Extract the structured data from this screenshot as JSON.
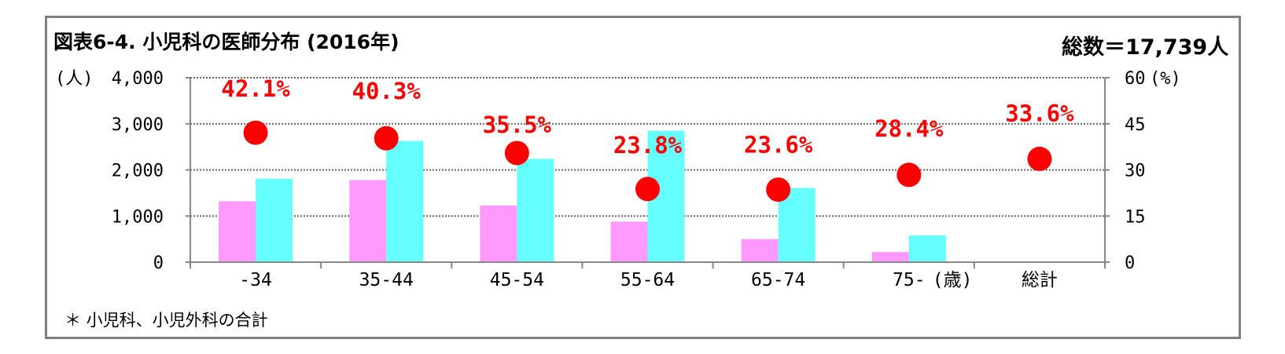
{
  "header": {
    "title": "図表6-4. 小児科の医師分布 (2016年)",
    "total": "総数＝17,739人"
  },
  "footnote": "＊ 小児科、小児外科の合計",
  "chart_data": {
    "type": "bar",
    "categories": [
      "-34",
      "35-44",
      "45-54",
      "55-64",
      "65-74",
      "75-",
      "総計"
    ],
    "x_unit_label": "(歳)",
    "series": [
      {
        "values": [
          1320,
          1780,
          1230,
          880,
          500,
          220,
          null
        ],
        "color": "#ff99ff",
        "axis": "left"
      },
      {
        "values": [
          1810,
          2630,
          2240,
          2850,
          1610,
          580,
          null
        ],
        "color": "#66ffff",
        "axis": "right"
      }
    ],
    "percent_series": {
      "type": "scatter",
      "values": [
        42.1,
        40.3,
        35.5,
        23.8,
        23.6,
        28.4,
        33.6
      ],
      "labels": [
        "42.1%",
        "40.3%",
        "35.5%",
        "23.8%",
        "23.6%",
        "28.4%",
        "33.6%"
      ],
      "color": "#ff0000"
    },
    "y_left": {
      "label": "(人)",
      "ylim": [
        0,
        4000
      ],
      "ticks": [
        "4,000",
        "3,000",
        "2,000",
        "1,000",
        "0"
      ]
    },
    "y_right": {
      "label": "(%)",
      "ylim": [
        0,
        60
      ],
      "ticks": [
        "60",
        "45",
        "30",
        "15",
        "0"
      ]
    },
    "grid": true
  }
}
